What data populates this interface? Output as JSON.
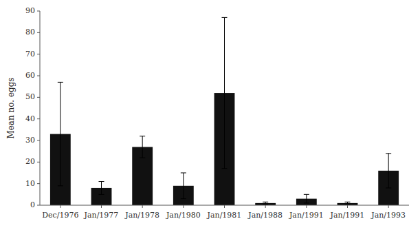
{
  "chart_data": {
    "type": "bar",
    "categories": [
      "Dec/1976",
      "Jan/1977",
      "Jan/1978",
      "Jan/1980",
      "Jan/1981",
      "Jan/1988",
      "Jan/1991",
      "Jan/1991",
      "Jan/1993"
    ],
    "values": [
      33,
      8,
      27,
      9,
      52,
      1,
      3,
      1,
      16
    ],
    "errors": [
      24,
      3,
      5,
      6,
      35,
      0.5,
      2,
      0.5,
      8
    ],
    "ylabel": "Mean no. eggs",
    "color": "#111111",
    "ylim": [
      0,
      90
    ],
    "yticks": [
      0,
      10,
      20,
      30,
      40,
      50,
      60,
      70,
      80,
      90
    ],
    "grid": false
  }
}
